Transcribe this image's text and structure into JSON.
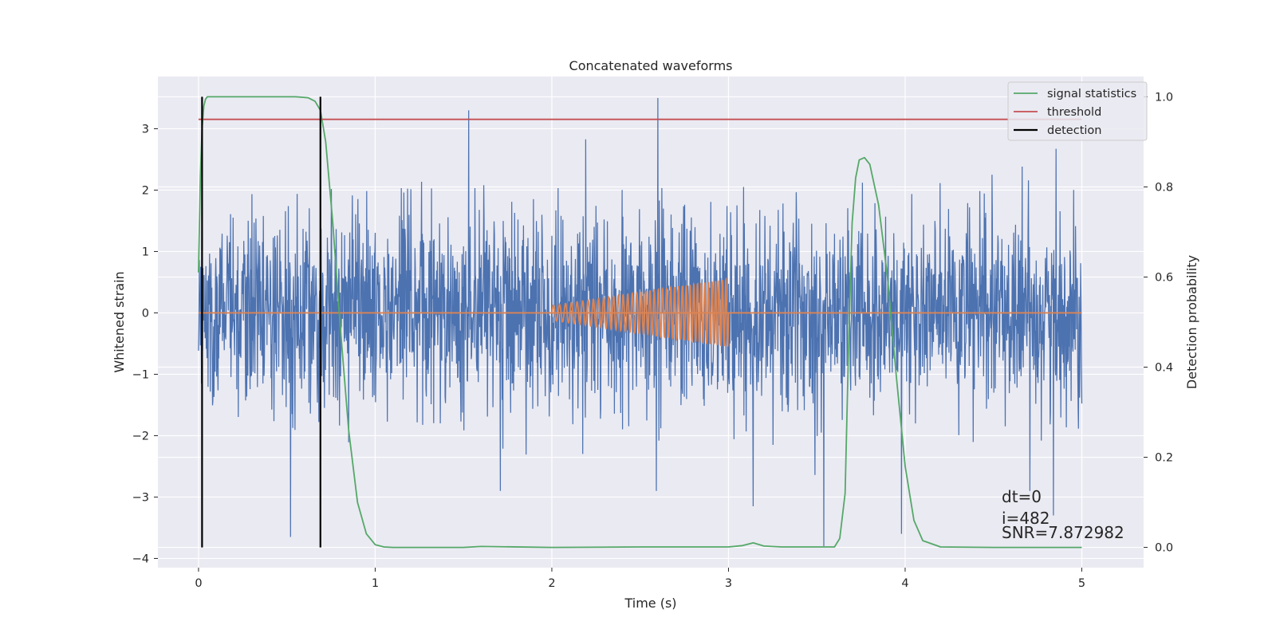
{
  "chart_data": {
    "type": "line",
    "title": "Concatenated waveforms",
    "xlabel": "Time (s)",
    "ylabel": "Whitened strain",
    "y2label": "Detection probability",
    "xlim": [
      -0.23,
      5.35
    ],
    "ylim": [
      -4.15,
      3.85
    ],
    "y2lim": [
      -0.045,
      1.045
    ],
    "xticks": [
      0,
      1,
      2,
      3,
      4,
      5
    ],
    "yticks": [
      -4,
      -3,
      -2,
      -1,
      0,
      1,
      2,
      3
    ],
    "y2ticks": [
      0.0,
      0.2,
      0.4,
      0.6,
      0.8,
      1.0
    ],
    "xtick_labels": [
      "0",
      "1",
      "2",
      "3",
      "4",
      "5"
    ],
    "ytick_labels": [
      "−4",
      "−3",
      "−2",
      "−1",
      "0",
      "1",
      "2",
      "3"
    ],
    "y2tick_labels": [
      "0.0",
      "0.2",
      "0.4",
      "0.6",
      "0.8",
      "1.0"
    ],
    "grid": true,
    "legend_position": "top-right",
    "colors": {
      "strain": "#4c72b0",
      "template": "#dd8452",
      "signal_statistics": "#55a868",
      "threshold": "#c44e52",
      "detection": "#000000",
      "background": "#eaeaf2",
      "grid": "#ffffff"
    },
    "strain_series": {
      "color_key": "strain",
      "t_range": [
        0,
        5
      ],
      "amplitude_std": 0.8,
      "peak_values": [
        {
          "t": 0.52,
          "y": -3.65
        },
        {
          "t": 1.53,
          "y": 3.3
        },
        {
          "t": 2.6,
          "y": 3.5
        },
        {
          "t": 3.14,
          "y": -3.15
        },
        {
          "t": 3.54,
          "y": -3.8
        },
        {
          "t": 3.98,
          "y": -3.6
        },
        {
          "t": 4.84,
          "y": -3.3
        }
      ]
    },
    "template_series": {
      "color_key": "template",
      "t_start": 2.0,
      "t_end": 3.0,
      "amp_start": 0.12,
      "amp_end": 0.55,
      "cycles": 40,
      "baseline_t_range": [
        0,
        5
      ],
      "baseline_y": 0
    },
    "series": [
      {
        "name": "signal statistics",
        "color_key": "signal_statistics",
        "axis": "right",
        "x": [
          0,
          0.01,
          0.02,
          0.03,
          0.04,
          0.05,
          0.06,
          0.08,
          0.1,
          0.2,
          0.4,
          0.55,
          0.62,
          0.66,
          0.69,
          0.72,
          0.76,
          0.8,
          0.85,
          0.9,
          0.95,
          1.0,
          1.05,
          1.1,
          1.5,
          1.6,
          2.0,
          2.5,
          3.0,
          3.08,
          3.14,
          3.2,
          3.3,
          3.6,
          3.63,
          3.66,
          3.68,
          3.7,
          3.72,
          3.74,
          3.77,
          3.8,
          3.85,
          3.9,
          3.95,
          4.0,
          4.05,
          4.1,
          4.2,
          4.5,
          5.0
        ],
        "y": [
          0.61,
          0.82,
          0.93,
          0.98,
          0.995,
          1.0,
          1.0,
          1.0,
          1.0,
          1.0,
          1.0,
          1.0,
          0.998,
          0.99,
          0.97,
          0.9,
          0.72,
          0.5,
          0.26,
          0.1,
          0.03,
          0.006,
          0.001,
          0.0,
          0.0,
          0.002,
          0.0,
          0.001,
          0.001,
          0.004,
          0.01,
          0.003,
          0.001,
          0.001,
          0.02,
          0.12,
          0.45,
          0.72,
          0.82,
          0.86,
          0.865,
          0.85,
          0.76,
          0.6,
          0.38,
          0.18,
          0.06,
          0.015,
          0.001,
          0.0,
          0.0
        ]
      },
      {
        "name": "threshold",
        "color_key": "threshold",
        "axis": "right",
        "x": [
          0,
          5
        ],
        "y": [
          0.95,
          0.95
        ]
      },
      {
        "name": "detection",
        "color_key": "detection",
        "axis": "right",
        "vlines": [
          0.02,
          0.69
        ],
        "y_range": [
          0,
          1
        ]
      }
    ],
    "legend": [
      "signal statistics",
      "threshold",
      "detection"
    ],
    "annotations": [
      "dt=0",
      "i=482",
      "SNR=7.872982"
    ]
  }
}
